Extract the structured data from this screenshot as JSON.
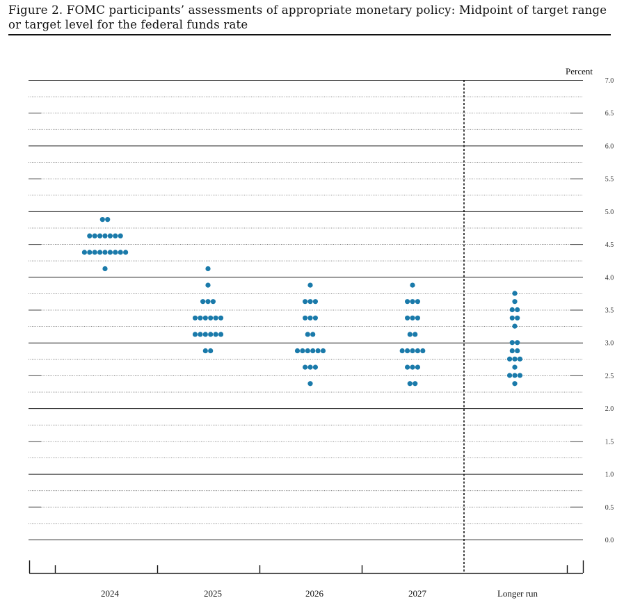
{
  "figure": {
    "title": "Figure 2.  FOMC participants’ assessments of appropriate monetary policy: Midpoint of target range or target level for the federal funds rate"
  },
  "chart_data": {
    "type": "scatter",
    "title": "Figure 2.  FOMC participants’ assessments of appropriate monetary policy: Midpoint of target range or target level for the federal funds rate",
    "ylabel": "Percent",
    "ylim": [
      0,
      7
    ],
    "grid": true,
    "yticks": [
      "7.0",
      "6.5",
      "6.0",
      "5.5",
      "5.0",
      "4.5",
      "4.0",
      "3.5",
      "3.0",
      "2.5",
      "2.0",
      "1.5",
      "1.0",
      "0.5",
      "0.0"
    ],
    "categories": [
      "2024",
      "2025",
      "2026",
      "2027",
      "Longer run"
    ],
    "dot_colors": {
      "dot": "#1a7aaa"
    },
    "points": [
      {
        "category": "2024",
        "rates": [
          {
            "y": 4.875,
            "count": 2
          },
          {
            "y": 4.625,
            "count": 7
          },
          {
            "y": 4.375,
            "count": 9
          },
          {
            "y": 4.125,
            "count": 1
          }
        ]
      },
      {
        "category": "2025",
        "rates": [
          {
            "y": 4.125,
            "count": 1
          },
          {
            "y": 3.875,
            "count": 1
          },
          {
            "y": 3.625,
            "count": 3
          },
          {
            "y": 3.375,
            "count": 6
          },
          {
            "y": 3.125,
            "count": 6
          },
          {
            "y": 2.875,
            "count": 2
          }
        ]
      },
      {
        "category": "2026",
        "rates": [
          {
            "y": 3.875,
            "count": 1
          },
          {
            "y": 3.625,
            "count": 3
          },
          {
            "y": 3.375,
            "count": 3
          },
          {
            "y": 3.125,
            "count": 2
          },
          {
            "y": 2.875,
            "count": 6
          },
          {
            "y": 2.625,
            "count": 3
          },
          {
            "y": 2.375,
            "count": 1
          }
        ]
      },
      {
        "category": "2027",
        "rates": [
          {
            "y": 3.875,
            "count": 1
          },
          {
            "y": 3.625,
            "count": 3
          },
          {
            "y": 3.375,
            "count": 3
          },
          {
            "y": 3.125,
            "count": 2
          },
          {
            "y": 2.875,
            "count": 5
          },
          {
            "y": 2.625,
            "count": 3
          },
          {
            "y": 2.375,
            "count": 2
          }
        ]
      },
      {
        "category": "Longer run",
        "rates": [
          {
            "y": 3.75,
            "count": 1
          },
          {
            "y": 3.625,
            "count": 1
          },
          {
            "y": 3.5,
            "count": 2
          },
          {
            "y": 3.375,
            "count": 2
          },
          {
            "y": 3.25,
            "count": 1
          },
          {
            "y": 3.0,
            "count": 2
          },
          {
            "y": 2.875,
            "count": 2
          },
          {
            "y": 2.75,
            "count": 3
          },
          {
            "y": 2.625,
            "count": 1
          },
          {
            "y": 2.5,
            "count": 3
          },
          {
            "y": 2.375,
            "count": 1
          }
        ]
      }
    ]
  }
}
